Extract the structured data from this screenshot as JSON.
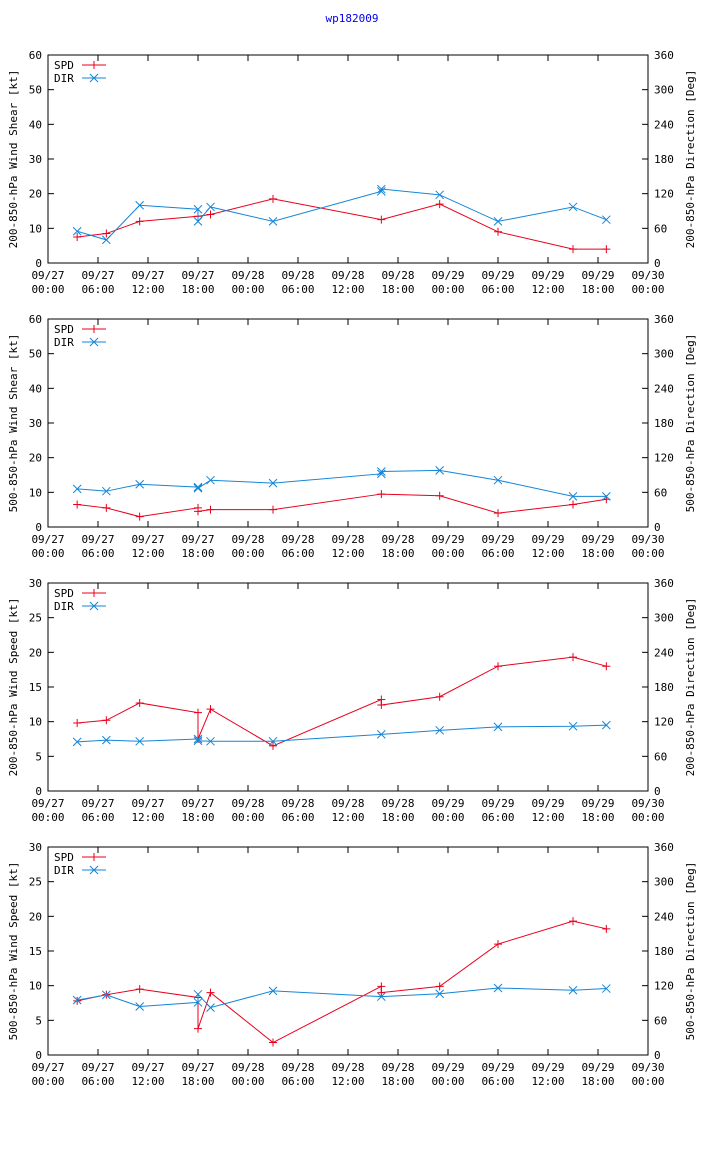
{
  "title": "wp182009",
  "colors": {
    "spd": "#e8001c",
    "dir": "#1486d8",
    "title": "#0000ee",
    "axis": "#000000",
    "grid": "#a0a0a0"
  },
  "x_ticks": [
    {
      "date": "09/27",
      "time": "00:00"
    },
    {
      "date": "09/27",
      "time": "06:00"
    },
    {
      "date": "09/27",
      "time": "12:00"
    },
    {
      "date": "09/27",
      "time": "18:00"
    },
    {
      "date": "09/28",
      "time": "00:00"
    },
    {
      "date": "09/28",
      "time": "06:00"
    },
    {
      "date": "09/28",
      "time": "12:00"
    },
    {
      "date": "09/28",
      "time": "18:00"
    },
    {
      "date": "09/29",
      "time": "00:00"
    },
    {
      "date": "09/29",
      "time": "06:00"
    },
    {
      "date": "09/29",
      "time": "12:00"
    },
    {
      "date": "09/29",
      "time": "18:00"
    },
    {
      "date": "09/30",
      "time": "00:00"
    }
  ],
  "chart_data": [
    {
      "type": "line",
      "ylabel": "200-850-hPa Wind Shear [kt]",
      "y2label": "200-850-hPa Direction [Deg]",
      "xlim": [
        0,
        72
      ],
      "ylim": [
        0,
        60
      ],
      "y2lim": [
        0,
        360
      ],
      "yticks": [
        0,
        10,
        20,
        30,
        40,
        50,
        60
      ],
      "y2ticks": [
        0,
        60,
        120,
        180,
        240,
        300,
        360
      ],
      "legend": [
        "SPD",
        "DIR"
      ],
      "legend_position": "top-left",
      "series": [
        {
          "name": "SPD",
          "axis": "left",
          "marker": "plus",
          "x": [
            3.5,
            7,
            11,
            18,
            19.5,
            27,
            40,
            47,
            54,
            63,
            67
          ],
          "y": [
            7.5,
            8.5,
            12,
            13.5,
            14,
            18.5,
            12.5,
            17,
            9,
            4,
            4
          ]
        },
        {
          "name": "DIR",
          "axis": "right",
          "marker": "x",
          "x": [
            3.5,
            7,
            11,
            18,
            18,
            19.5,
            27,
            40,
            40,
            47,
            54,
            63,
            67
          ],
          "y": [
            55,
            40,
            100,
            93,
            72,
            97,
            72,
            124,
            128,
            118,
            72,
            97,
            75
          ]
        }
      ]
    },
    {
      "type": "line",
      "ylabel": "500-850-hPa Wind Shear [kt]",
      "y2label": "500-850-hPa Direction [Deg]",
      "xlim": [
        0,
        72
      ],
      "ylim": [
        0,
        60
      ],
      "y2lim": [
        0,
        360
      ],
      "yticks": [
        0,
        10,
        20,
        30,
        40,
        50,
        60
      ],
      "y2ticks": [
        0,
        60,
        120,
        180,
        240,
        300,
        360
      ],
      "legend": [
        "SPD",
        "DIR"
      ],
      "legend_position": "top-left",
      "series": [
        {
          "name": "SPD",
          "axis": "left",
          "marker": "plus",
          "x": [
            3.5,
            7,
            11,
            18,
            18,
            19.5,
            27,
            40,
            47,
            54,
            63,
            67
          ],
          "y": [
            6.5,
            5.5,
            3,
            5.5,
            4.5,
            5,
            5,
            9.5,
            9,
            4,
            6.5,
            8
          ]
        },
        {
          "name": "DIR",
          "axis": "right",
          "marker": "x",
          "x": [
            3.5,
            7,
            11,
            18,
            18,
            19.5,
            27,
            40,
            40,
            47,
            54,
            63,
            67
          ],
          "y": [
            66,
            62,
            74,
            69,
            67,
            81,
            76,
            92,
            96,
            98,
            81,
            53,
            53
          ]
        }
      ]
    },
    {
      "type": "line",
      "ylabel": "200-850-hPa Wind Speed [kt]",
      "y2label": "200-850-hPa Direction [Deg]",
      "xlim": [
        0,
        72
      ],
      "ylim": [
        0,
        30
      ],
      "y2lim": [
        0,
        360
      ],
      "yticks": [
        0,
        5,
        10,
        15,
        20,
        25,
        30
      ],
      "y2ticks": [
        0,
        60,
        120,
        180,
        240,
        300,
        360
      ],
      "legend": [
        "SPD",
        "DIR"
      ],
      "legend_position": "top-left",
      "series": [
        {
          "name": "SPD",
          "axis": "left",
          "marker": "plus",
          "x": [
            3.5,
            7,
            11,
            18,
            18,
            19.5,
            27,
            40,
            40,
            47,
            54,
            63,
            67
          ],
          "y": [
            9.8,
            10.2,
            12.7,
            11.3,
            7.5,
            11.8,
            6.5,
            13.2,
            12.4,
            13.6,
            18,
            19.3,
            18
          ]
        },
        {
          "name": "DIR",
          "axis": "right",
          "marker": "x",
          "x": [
            3.5,
            7,
            11,
            18,
            18,
            19.5,
            27,
            40,
            47,
            54,
            63,
            67
          ],
          "y": [
            85,
            88,
            86,
            90,
            87,
            86,
            86,
            98,
            105,
            111,
            112,
            114
          ]
        }
      ]
    },
    {
      "type": "line",
      "ylabel": "500-850-hPa Wind Speed [kt]",
      "y2label": "500-850-hPa Direction [Deg]",
      "xlim": [
        0,
        72
      ],
      "ylim": [
        0,
        30
      ],
      "y2lim": [
        0,
        360
      ],
      "yticks": [
        0,
        5,
        10,
        15,
        20,
        25,
        30
      ],
      "y2ticks": [
        0,
        60,
        120,
        180,
        240,
        300,
        360
      ],
      "legend": [
        "SPD",
        "DIR"
      ],
      "legend_position": "top-left",
      "series": [
        {
          "name": "SPD",
          "axis": "left",
          "marker": "plus",
          "x": [
            3.5,
            7,
            11,
            18,
            18,
            19.5,
            27,
            40,
            40,
            47,
            54,
            63,
            67
          ],
          "y": [
            7.8,
            8.7,
            9.5,
            8.3,
            3.8,
            9,
            1.8,
            9.9,
            9,
            9.9,
            16,
            19.3,
            18.2
          ]
        },
        {
          "name": "DIR",
          "axis": "right",
          "marker": "x",
          "x": [
            3.5,
            7,
            11,
            18,
            18,
            19.5,
            27,
            40,
            47,
            54,
            63,
            67
          ],
          "y": [
            95,
            104,
            84,
            91,
            105,
            82,
            111,
            101,
            106,
            116,
            112,
            115
          ]
        }
      ]
    }
  ]
}
